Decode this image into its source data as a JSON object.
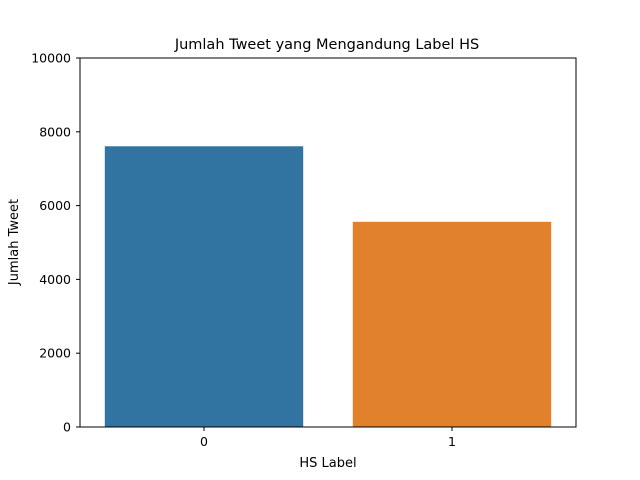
{
  "chart_data": {
    "type": "bar",
    "title": "Jumlah Tweet yang Mengandung Label HS",
    "xlabel": "HS Label",
    "ylabel": "Jumlah Tweet",
    "categories": [
      "0",
      "1"
    ],
    "values": [
      7608,
      5561
    ],
    "colors": [
      "#3274a1",
      "#e1812c"
    ],
    "ylim": [
      0,
      10000
    ],
    "yticks": [
      "0",
      "2000",
      "4000",
      "6000",
      "8000",
      "10000"
    ],
    "grid": false,
    "legend": "none"
  }
}
